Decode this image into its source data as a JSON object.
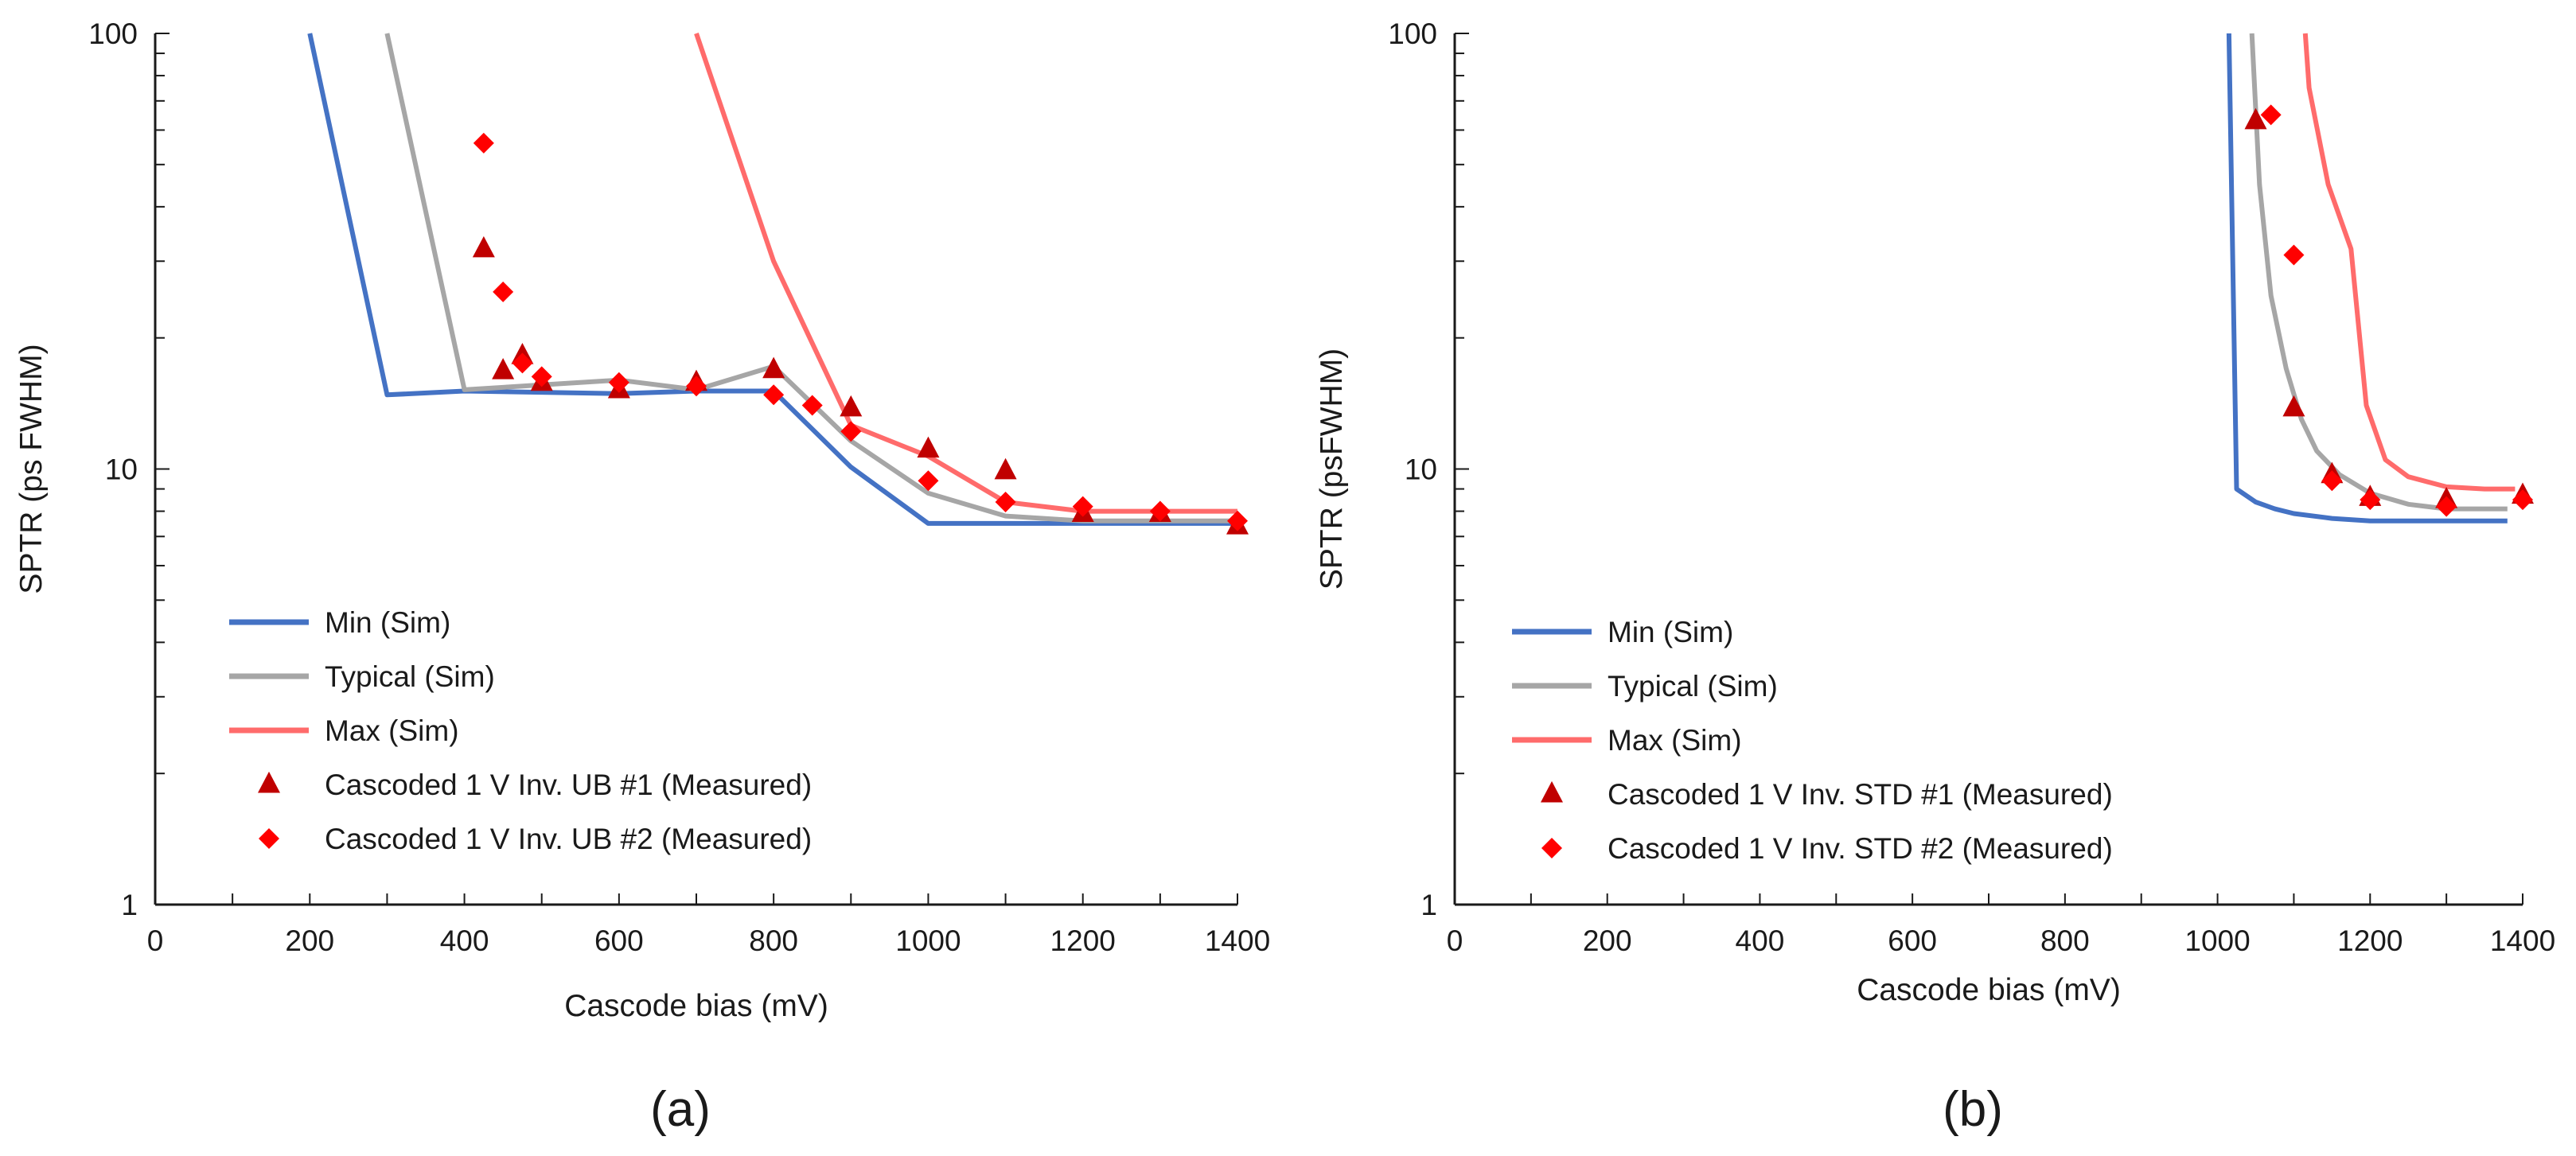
{
  "chart_data": [
    {
      "type": "line",
      "panel_label": "(a)",
      "xlabel": "Cascode bias (mV)",
      "ylabel": "SPTR (ps FWHM)",
      "yscale": "log",
      "xlim": [
        0,
        1400
      ],
      "ylim": [
        1,
        100
      ],
      "x_ticks": [
        0,
        200,
        400,
        600,
        800,
        1000,
        1200,
        1400
      ],
      "y_ticks": [
        1,
        10,
        100
      ],
      "grid": false,
      "legend_position": "lower-left",
      "series": [
        {
          "name": "Min (Sim)",
          "kind": "line",
          "color": "#4472C4",
          "points": [
            [
              200,
              100
            ],
            [
              300,
              14.8
            ],
            [
              400,
              15.1
            ],
            [
              500,
              15.0
            ],
            [
              600,
              14.9
            ],
            [
              700,
              15.1
            ],
            [
              800,
              15.1
            ],
            [
              900,
              10.1
            ],
            [
              1000,
              7.5
            ],
            [
              1100,
              7.5
            ],
            [
              1200,
              7.5
            ],
            [
              1300,
              7.5
            ],
            [
              1400,
              7.5
            ]
          ]
        },
        {
          "name": "Typical (Sim)",
          "kind": "line",
          "color": "#A6A6A6",
          "points": [
            [
              300,
              100
            ],
            [
              400,
              15.2
            ],
            [
              500,
              15.6
            ],
            [
              600,
              16.0
            ],
            [
              700,
              15.2
            ],
            [
              800,
              17.2
            ],
            [
              900,
              11.6
            ],
            [
              1000,
              8.8
            ],
            [
              1100,
              7.8
            ],
            [
              1200,
              7.6
            ],
            [
              1300,
              7.6
            ],
            [
              1400,
              7.6
            ]
          ]
        },
        {
          "name": "Max (Sim)",
          "kind": "line",
          "color": "#FF6B6B",
          "points": [
            [
              700,
              100
            ],
            [
              800,
              30
            ],
            [
              900,
              12.6
            ],
            [
              1000,
              10.7
            ],
            [
              1100,
              8.4
            ],
            [
              1200,
              8.0
            ],
            [
              1300,
              8.0
            ],
            [
              1400,
              8.0
            ]
          ]
        },
        {
          "name": "Cascoded 1 V Inv. UB #1 (Measured)",
          "kind": "triangle",
          "color": "#C00000",
          "points": [
            [
              425,
              32
            ],
            [
              450,
              16.8
            ],
            [
              475,
              18.2
            ],
            [
              500,
              15.8
            ],
            [
              600,
              15.2
            ],
            [
              700,
              15.8
            ],
            [
              800,
              16.9
            ],
            [
              900,
              13.8
            ],
            [
              1000,
              11.1
            ],
            [
              1100,
              9.9
            ],
            [
              1200,
              7.9
            ],
            [
              1300,
              7.9
            ],
            [
              1400,
              7.4
            ]
          ]
        },
        {
          "name": "Cascoded 1 V Inv. UB #2 (Measured)",
          "kind": "diamond",
          "color": "#FF0000",
          "points": [
            [
              425,
              56
            ],
            [
              450,
              25.5
            ],
            [
              475,
              17.5
            ],
            [
              500,
              16.3
            ],
            [
              600,
              15.8
            ],
            [
              700,
              15.5
            ],
            [
              800,
              14.8
            ],
            [
              850,
              14
            ],
            [
              900,
              12.2
            ],
            [
              1000,
              9.4
            ],
            [
              1100,
              8.4
            ],
            [
              1200,
              8.2
            ],
            [
              1300,
              8.0
            ],
            [
              1400,
              7.6
            ]
          ]
        }
      ]
    },
    {
      "type": "line",
      "panel_label": "(b)",
      "xlabel": "Cascode bias (mV)",
      "ylabel": "SPTR (psFWHM)",
      "yscale": "log",
      "xlim": [
        0,
        1400
      ],
      "ylim": [
        1,
        100
      ],
      "x_ticks": [
        0,
        200,
        400,
        600,
        800,
        1000,
        1200,
        1400
      ],
      "y_ticks": [
        1,
        10,
        100
      ],
      "grid": false,
      "legend_position": "lower-left",
      "series": [
        {
          "name": "Min (Sim)",
          "kind": "line",
          "color": "#4472C4",
          "points": [
            [
              1015,
              100
            ],
            [
              1020,
              30
            ],
            [
              1025,
              9.0
            ],
            [
              1050,
              8.4
            ],
            [
              1075,
              8.1
            ],
            [
              1100,
              7.9
            ],
            [
              1150,
              7.7
            ],
            [
              1200,
              7.6
            ],
            [
              1300,
              7.6
            ],
            [
              1380,
              7.6
            ]
          ]
        },
        {
          "name": "Typical (Sim)",
          "kind": "line",
          "color": "#A6A6A6",
          "points": [
            [
              1045,
              100
            ],
            [
              1055,
              45
            ],
            [
              1070,
              25
            ],
            [
              1090,
              17
            ],
            [
              1110,
              13
            ],
            [
              1130,
              11
            ],
            [
              1160,
              9.7
            ],
            [
              1200,
              8.8
            ],
            [
              1250,
              8.3
            ],
            [
              1300,
              8.1
            ],
            [
              1380,
              8.1
            ]
          ]
        },
        {
          "name": "Max (Sim)",
          "kind": "line",
          "color": "#FF6B6B",
          "points": [
            [
              1115,
              100
            ],
            [
              1120,
              75
            ],
            [
              1145,
              45
            ],
            [
              1175,
              32
            ],
            [
              1195,
              14
            ],
            [
              1220,
              10.5
            ],
            [
              1250,
              9.6
            ],
            [
              1300,
              9.1
            ],
            [
              1350,
              9.0
            ],
            [
              1390,
              9.0
            ]
          ]
        },
        {
          "name": "Cascoded 1 V Inv. STD #1 (Measured)",
          "kind": "triangle",
          "color": "#C00000",
          "points": [
            [
              1050,
              63
            ],
            [
              1100,
              13.8
            ],
            [
              1150,
              9.7
            ],
            [
              1200,
              8.6
            ],
            [
              1300,
              8.5
            ],
            [
              1400,
              8.7
            ]
          ]
        },
        {
          "name": "Cascoded 1 V Inv. STD #2 (Measured)",
          "kind": "diamond",
          "color": "#FF0000",
          "points": [
            [
              1070,
              65
            ],
            [
              1100,
              31
            ],
            [
              1150,
              9.4
            ],
            [
              1200,
              8.5
            ],
            [
              1300,
              8.2
            ],
            [
              1400,
              8.5
            ]
          ]
        }
      ]
    }
  ]
}
